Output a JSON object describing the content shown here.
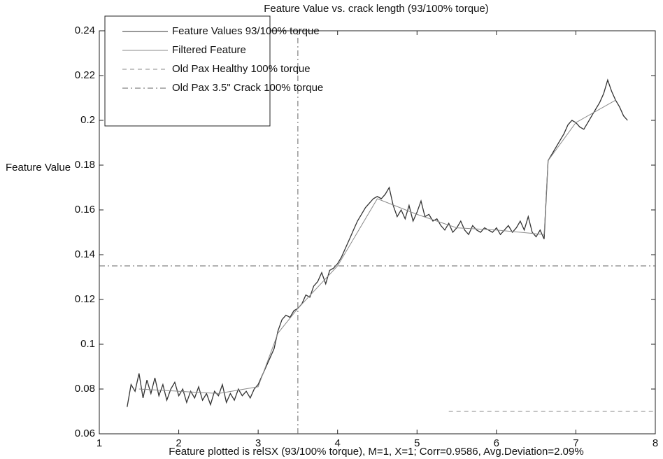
{
  "chart_data": {
    "type": "line",
    "title": "Feature Value vs. crack length (93/100% torque)",
    "y_label": "Feature Value",
    "x_label": "Feature plotted is relSX (93/100% torque), M=1, X=1; Corr=0.9586, Avg.Deviation=2.09%",
    "xlim": [
      1,
      8
    ],
    "xticks": [
      1,
      2,
      3,
      4,
      5,
      6,
      7,
      8
    ],
    "ylim": [
      0.06,
      0.24
    ],
    "yticks": [
      0.06,
      0.08,
      0.1,
      0.12,
      0.14,
      0.16,
      0.18,
      0.2,
      0.22,
      0.24
    ],
    "grid": false,
    "legend": "upper left",
    "series": [
      {
        "name": "Feature Values 93/100% torque",
        "color": "#333333",
        "style": "solid",
        "x": [
          1.35,
          1.4,
          1.45,
          1.5,
          1.55,
          1.6,
          1.65,
          1.7,
          1.75,
          1.8,
          1.85,
          1.9,
          1.95,
          2.0,
          2.05,
          2.1,
          2.15,
          2.2,
          2.25,
          2.3,
          2.35,
          2.4,
          2.45,
          2.5,
          2.55,
          2.6,
          2.65,
          2.7,
          2.75,
          2.8,
          2.85,
          2.9,
          2.95,
          3.0,
          3.05,
          3.1,
          3.15,
          3.2,
          3.25,
          3.3,
          3.35,
          3.4,
          3.45,
          3.5,
          3.55,
          3.6,
          3.65,
          3.7,
          3.75,
          3.8,
          3.85,
          3.9,
          3.95,
          4.0,
          4.05,
          4.1,
          4.15,
          4.2,
          4.25,
          4.3,
          4.35,
          4.4,
          4.45,
          4.5,
          4.55,
          4.6,
          4.65,
          4.7,
          4.75,
          4.8,
          4.85,
          4.9,
          4.95,
          5.0,
          5.05,
          5.1,
          5.15,
          5.2,
          5.25,
          5.3,
          5.35,
          5.4,
          5.45,
          5.5,
          5.55,
          5.6,
          5.65,
          5.7,
          5.75,
          5.8,
          5.85,
          5.9,
          5.95,
          6.0,
          6.05,
          6.1,
          6.15,
          6.2,
          6.25,
          6.3,
          6.35,
          6.4,
          6.45,
          6.5,
          6.55,
          6.6,
          6.65,
          6.7,
          6.75,
          6.8,
          6.85,
          6.9,
          6.95,
          7.0,
          7.05,
          7.1,
          7.15,
          7.2,
          7.25,
          7.3,
          7.35,
          7.4,
          7.45,
          7.5,
          7.55,
          7.6,
          7.65
        ],
        "values": [
          0.072,
          0.082,
          0.079,
          0.087,
          0.076,
          0.084,
          0.078,
          0.085,
          0.077,
          0.082,
          0.075,
          0.08,
          0.083,
          0.077,
          0.08,
          0.074,
          0.079,
          0.076,
          0.081,
          0.075,
          0.078,
          0.073,
          0.079,
          0.077,
          0.082,
          0.074,
          0.078,
          0.075,
          0.08,
          0.077,
          0.079,
          0.076,
          0.08,
          0.082,
          0.086,
          0.09,
          0.094,
          0.098,
          0.106,
          0.111,
          0.113,
          0.112,
          0.115,
          0.116,
          0.118,
          0.122,
          0.121,
          0.126,
          0.128,
          0.132,
          0.127,
          0.133,
          0.134,
          0.136,
          0.139,
          0.143,
          0.147,
          0.151,
          0.155,
          0.158,
          0.161,
          0.163,
          0.165,
          0.166,
          0.165,
          0.167,
          0.17,
          0.162,
          0.157,
          0.16,
          0.156,
          0.162,
          0.155,
          0.159,
          0.164,
          0.157,
          0.158,
          0.155,
          0.156,
          0.153,
          0.151,
          0.154,
          0.15,
          0.152,
          0.155,
          0.151,
          0.149,
          0.153,
          0.151,
          0.15,
          0.152,
          0.151,
          0.15,
          0.152,
          0.149,
          0.151,
          0.153,
          0.15,
          0.152,
          0.155,
          0.151,
          0.157,
          0.15,
          0.148,
          0.151,
          0.147,
          0.182,
          0.185,
          0.188,
          0.191,
          0.194,
          0.198,
          0.2,
          0.199,
          0.197,
          0.196,
          0.199,
          0.202,
          0.205,
          0.208,
          0.212,
          0.218,
          0.213,
          0.209,
          0.206,
          0.202,
          0.2
        ]
      },
      {
        "name": "Filtered Feature",
        "color": "#8a8a8a",
        "style": "solid",
        "x": [
          1.5,
          2.0,
          2.5,
          3.0,
          3.25,
          3.5,
          4.0,
          4.5,
          5.0,
          5.5,
          6.0,
          6.6,
          6.65,
          7.0,
          7.5
        ],
        "values": [
          0.08,
          0.079,
          0.078,
          0.081,
          0.105,
          0.116,
          0.135,
          0.165,
          0.158,
          0.152,
          0.151,
          0.149,
          0.182,
          0.199,
          0.209
        ]
      },
      {
        "name": "Old Pax Healthy 100% torque",
        "color": "#8a8a8a",
        "style": "dashed",
        "x": [
          5.4,
          8
        ],
        "values": [
          0.07,
          0.07
        ]
      },
      {
        "name": "Old Pax 3.5\" Crack 100% torque",
        "color": "#666666",
        "style": "dashdot",
        "x": [
          1,
          8,
          3.5,
          3.5,
          3.5
        ],
        "values": [
          0.135,
          0.135,
          null,
          0.06,
          0.24
        ]
      }
    ]
  }
}
